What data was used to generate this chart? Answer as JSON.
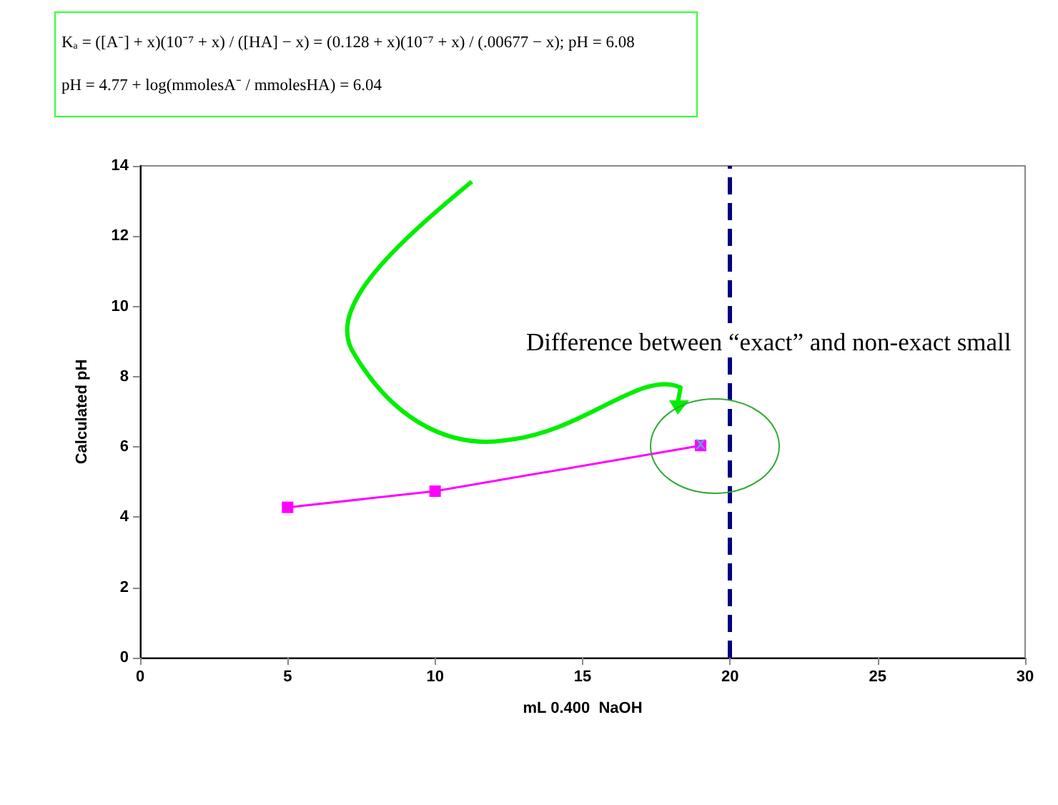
{
  "chart_data": {
    "type": "line",
    "xlabel": "mL 0.400  NaOH",
    "ylabel": "Calculated pH",
    "series": [
      {
        "name": null,
        "color": "#ff00ff",
        "x": [
          5,
          10,
          19
        ],
        "values": [
          4.28,
          4.74,
          6.04
        ],
        "marker": "square"
      },
      {
        "type": "scatter",
        "color": "#33cccc",
        "x": [
          19
        ],
        "values": [
          6.08
        ],
        "marker": "cross"
      }
    ],
    "xlim": [
      0,
      30
    ],
    "xticks": [
      0,
      5,
      10,
      15,
      20,
      25,
      30
    ],
    "ylim": [
      0,
      14
    ],
    "yticks": [
      0,
      2,
      4,
      6,
      8,
      10,
      12,
      14
    ],
    "grid": false,
    "ref_lines": [
      {
        "axis": "x",
        "value": 20,
        "color": "#000080",
        "line_style": "dashed"
      }
    ],
    "annotations": [
      "Kₐ = ([A⁻] + x)(10⁻⁷ + x) / ([HA] − x) = (0.128 + x)(10⁻⁷ + x) / (.00677 − x); pH = 6.08",
      "pH = 4.77 + log(mmolesA⁻ / mmolesHA) = 6.04",
      "Difference between “exact” and non-exact small"
    ]
  }
}
